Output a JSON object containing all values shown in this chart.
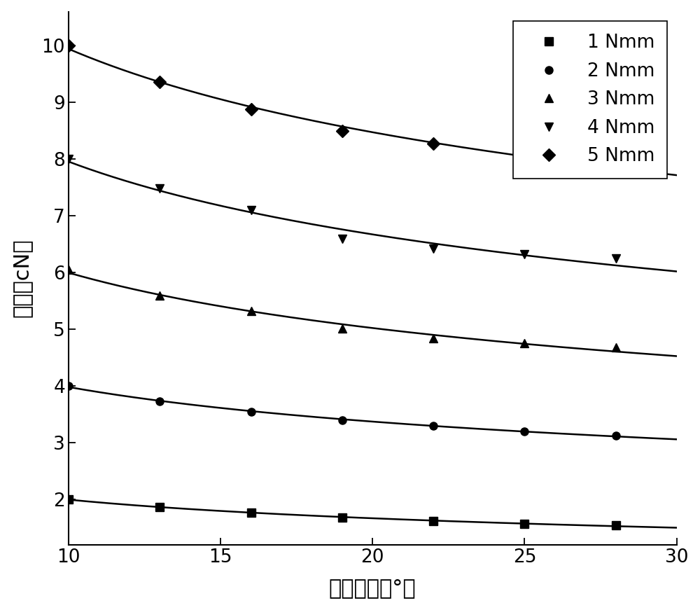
{
  "xlabel": "电机转角（°）",
  "ylabel": "张力（cN）",
  "xlim": [
    10,
    30
  ],
  "ylim": [
    1.2,
    10.6
  ],
  "xticks": [
    10,
    15,
    20,
    25,
    30
  ],
  "yticks": [
    2,
    3,
    4,
    5,
    6,
    7,
    8,
    9,
    10
  ],
  "series": [
    {
      "label": "1 Nmm",
      "marker": "s",
      "x_points": [
        10,
        13,
        16,
        19,
        22,
        25,
        28
      ],
      "y_points": [
        2.0,
        1.87,
        1.76,
        1.68,
        1.62,
        1.57,
        1.54
      ]
    },
    {
      "label": "2 Nmm",
      "marker": "o",
      "x_points": [
        10,
        13,
        16,
        19,
        22,
        25,
        28
      ],
      "y_points": [
        4.0,
        3.73,
        3.55,
        3.39,
        3.3,
        3.2,
        3.12
      ]
    },
    {
      "label": "3 Nmm",
      "marker": "^",
      "x_points": [
        10,
        13,
        16,
        19,
        22,
        25,
        28
      ],
      "y_points": [
        6.05,
        5.6,
        5.32,
        5.01,
        4.84,
        4.76,
        4.68
      ]
    },
    {
      "label": "4 Nmm",
      "marker": "v",
      "x_points": [
        10,
        13,
        16,
        19,
        22,
        25,
        28
      ],
      "y_points": [
        8.0,
        7.48,
        7.1,
        6.6,
        6.42,
        6.32,
        6.25
      ]
    },
    {
      "label": "5 Nmm",
      "marker": "D",
      "x_points": [
        10,
        13,
        16,
        19,
        22,
        25,
        28
      ],
      "y_points": [
        10.0,
        9.36,
        8.88,
        8.5,
        8.28,
        8.08,
        7.88
      ]
    }
  ],
  "line_color": "#000000",
  "line_width": 1.8,
  "marker_sizes": [
    8,
    8,
    9,
    9,
    9
  ],
  "legend_fontsize": 19,
  "axis_label_fontsize": 22,
  "tick_fontsize": 19
}
